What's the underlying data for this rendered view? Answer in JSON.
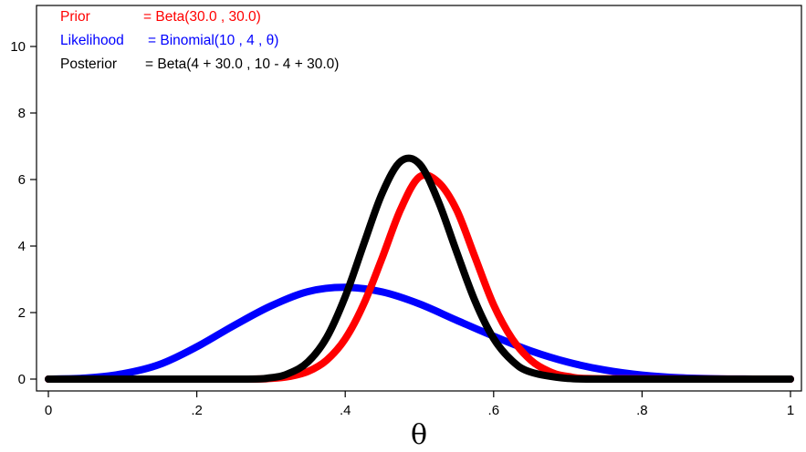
{
  "chart_data": {
    "type": "line",
    "title": "",
    "xlabel": "θ",
    "ylabel": "",
    "xlim": [
      0,
      1
    ],
    "ylim": [
      0,
      10
    ],
    "grid": false,
    "legend_position": "top-left",
    "x_ticks": [
      {
        "value": 0,
        "label": "0"
      },
      {
        "value": 0.2,
        "label": ".2"
      },
      {
        "value": 0.4,
        "label": ".4"
      },
      {
        "value": 0.6,
        "label": ".6"
      },
      {
        "value": 0.8,
        "label": ".8"
      },
      {
        "value": 1,
        "label": "1"
      }
    ],
    "y_ticks": [
      {
        "value": 0,
        "label": "0"
      },
      {
        "value": 2,
        "label": "2"
      },
      {
        "value": 4,
        "label": "4"
      },
      {
        "value": 6,
        "label": "6"
      },
      {
        "value": 8,
        "label": "8"
      },
      {
        "value": 10,
        "label": "10"
      }
    ],
    "series": [
      {
        "name": "Likelihood",
        "definition": "= Binomial(10 , 4 , θ)",
        "color": "#0000ff",
        "x": [
          0,
          0.05,
          0.1,
          0.15,
          0.2,
          0.25,
          0.3,
          0.35,
          0.4,
          0.45,
          0.5,
          0.55,
          0.6,
          0.65,
          0.7,
          0.75,
          0.8,
          0.85,
          0.9,
          0.95,
          1
        ],
        "y": [
          0,
          0.03,
          0.16,
          0.44,
          0.97,
          1.61,
          2.2,
          2.63,
          2.76,
          2.62,
          2.26,
          1.77,
          1.29,
          0.85,
          0.51,
          0.27,
          0.12,
          0.04,
          0.01,
          0.0,
          0
        ]
      },
      {
        "name": "Prior",
        "definition": "= Beta(30.0 , 30.0)",
        "color": "#ff0000",
        "x": [
          0,
          0.25,
          0.3,
          0.325,
          0.35,
          0.375,
          0.4,
          0.425,
          0.45,
          0.475,
          0.5,
          0.525,
          0.55,
          0.575,
          0.6,
          0.625,
          0.65,
          0.675,
          0.7,
          0.75,
          1
        ],
        "y": [
          0,
          0.0,
          0.02,
          0.08,
          0.23,
          0.57,
          1.21,
          2.26,
          3.66,
          5.12,
          6.08,
          5.93,
          5.09,
          3.66,
          2.23,
          1.21,
          0.57,
          0.23,
          0.08,
          0.01,
          0
        ]
      },
      {
        "name": "Posterior",
        "definition": "= Beta(4 + 30.0 , 10 - 4 + 30.0)",
        "color": "#000000",
        "x": [
          0,
          0.25,
          0.3,
          0.325,
          0.35,
          0.375,
          0.4,
          0.425,
          0.45,
          0.475,
          0.5,
          0.525,
          0.55,
          0.575,
          0.6,
          0.625,
          0.65,
          0.7,
          0.75,
          1
        ],
        "y": [
          0,
          0.0,
          0.04,
          0.18,
          0.52,
          1.25,
          2.48,
          4.06,
          5.6,
          6.55,
          6.47,
          5.37,
          3.83,
          2.34,
          1.22,
          0.55,
          0.21,
          0.02,
          0.0,
          0
        ]
      }
    ]
  }
}
